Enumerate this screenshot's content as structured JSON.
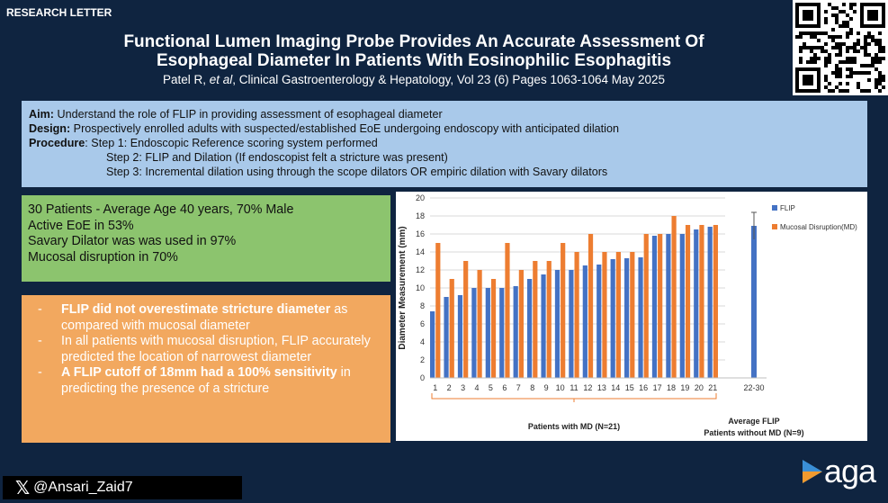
{
  "header": {
    "tag": "RESEARCH LETTER",
    "title_line1": "Functional Lumen Imaging Probe Provides An Accurate Assessment Of",
    "title_line2": "Esophageal Diameter In Patients With Eosinophilic Esophagitis",
    "citation_authors": "Patel R, ",
    "citation_etal": "et al",
    "citation_rest": ", Clinical Gastroenterology & Hepatology, Vol 23 (6) Pages 1063-1064  May 2025"
  },
  "aim": {
    "aim_label": "Aim:",
    "aim_text": " Understand the role of FLIP in providing assessment of esophageal diameter",
    "design_label": "Design:",
    "design_text": " Prospectively enrolled adults with suspected/established EoE undergoing endoscopy with anticipated dilation",
    "procedure_label": "Procedure",
    "step1": ": Step 1: Endoscopic Reference scoring system performed",
    "step2": "Step 2: FLIP and Dilation (If endoscopist felt a stricture was present)",
    "step3": "Step 3: Incremental dilation using through the scope dilators OR empiric dilation with Savary dilators"
  },
  "stats": [
    "30 Patients - Average Age 40 years, 70% Male",
    "Active EoE in 53%",
    "Savary Dilator was was used in 97%",
    "Mucosal disruption in 70%"
  ],
  "findings": {
    "dash": "-",
    "b1": "FLIP did not overestimate stricture diameter",
    "b1_rest": " as compared with mucosal diameter",
    "b2": "In all patients with mucosal disruption, FLIP accurately predicted the location of narrowest diameter",
    "b3": "A FLIP cutoff of 18mm had a 100% sensitivity",
    "b3_rest": " in predicting the presence of a stricture"
  },
  "chart_data": {
    "type": "bar",
    "ylabel": "Diameter Measurement (mm)",
    "ylim": [
      0,
      20
    ],
    "yticks": [
      "0",
      "2",
      "4",
      "6",
      "8",
      "10",
      "12",
      "14",
      "16",
      "18",
      "20"
    ],
    "categories": [
      "1",
      "2",
      "3",
      "4",
      "5",
      "6",
      "7",
      "8",
      "9",
      "10",
      "11",
      "12",
      "13",
      "14",
      "15",
      "16",
      "17",
      "18",
      "19",
      "20",
      "21"
    ],
    "series": [
      {
        "name": "FLIP",
        "color": "#4472c4",
        "values": [
          7.4,
          9,
          9.2,
          10,
          10,
          10,
          10.2,
          11,
          11.5,
          12,
          12,
          12.5,
          12.6,
          13.2,
          13.3,
          13.4,
          15.8,
          16,
          16,
          16.5,
          16.8
        ]
      },
      {
        "name": "Mucosal Disruption(MD)",
        "color": "#ed7d31",
        "values": [
          15,
          11,
          13,
          12,
          11,
          15,
          12,
          13,
          13,
          15,
          14,
          16,
          14,
          14,
          14,
          16,
          16,
          18,
          17,
          17,
          17
        ]
      }
    ],
    "extra_category": "22-30",
    "extra_value": 16.9,
    "extra_error": 1.5,
    "group1_label": "Patients with MD (N=21)",
    "group2_label_line1": "Average FLIP",
    "group2_label_line2": "Patients without MD (N=9)",
    "legend_position": "right"
  },
  "footer": {
    "x_icon": "x-logo-icon",
    "handle": "@Ansari_Zaid7",
    "brand": "aga"
  }
}
